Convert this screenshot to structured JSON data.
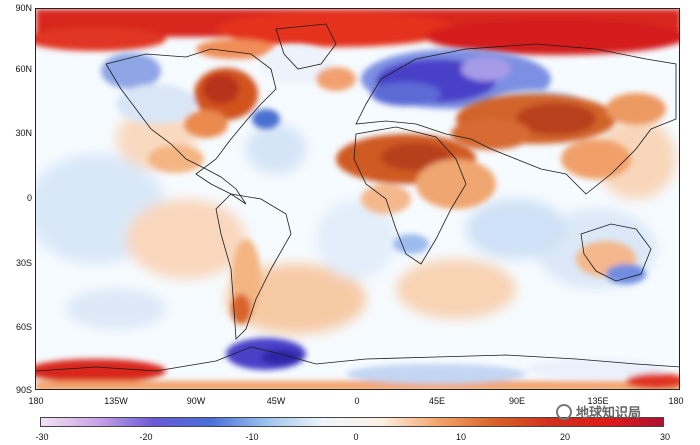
{
  "map": {
    "lat_labels": [
      "90N",
      "60N",
      "30N",
      "0",
      "30S",
      "60S",
      "90S"
    ],
    "lon_labels": [
      "180",
      "135W",
      "90W",
      "45W",
      "0",
      "45E",
      "90E",
      "135E",
      "180"
    ],
    "colorbar_ticks": [
      "-30",
      "-20",
      "-10",
      "0",
      "10",
      "20",
      "30"
    ],
    "colorbar_range": [
      -30,
      30
    ],
    "colormap": [
      "#f4e2f4",
      "#c9a3e6",
      "#6a5ad6",
      "#4a6fd8",
      "#9ec4ee",
      "#eef5fb",
      "#fdf0e4",
      "#f4a66e",
      "#d8642a",
      "#d0301e",
      "#e01a1a",
      "#b01030"
    ],
    "watermark": "地球知识局",
    "colors": {
      "warm_strong": "#d8261e",
      "warm_mid": "#d26a2c",
      "warm_light": "#f4b583",
      "cool_strong": "#4a3fc8",
      "cool_mid": "#7d8fe2",
      "cool_light": "#b9d3f1",
      "coast": "#1c1c1c"
    }
  }
}
